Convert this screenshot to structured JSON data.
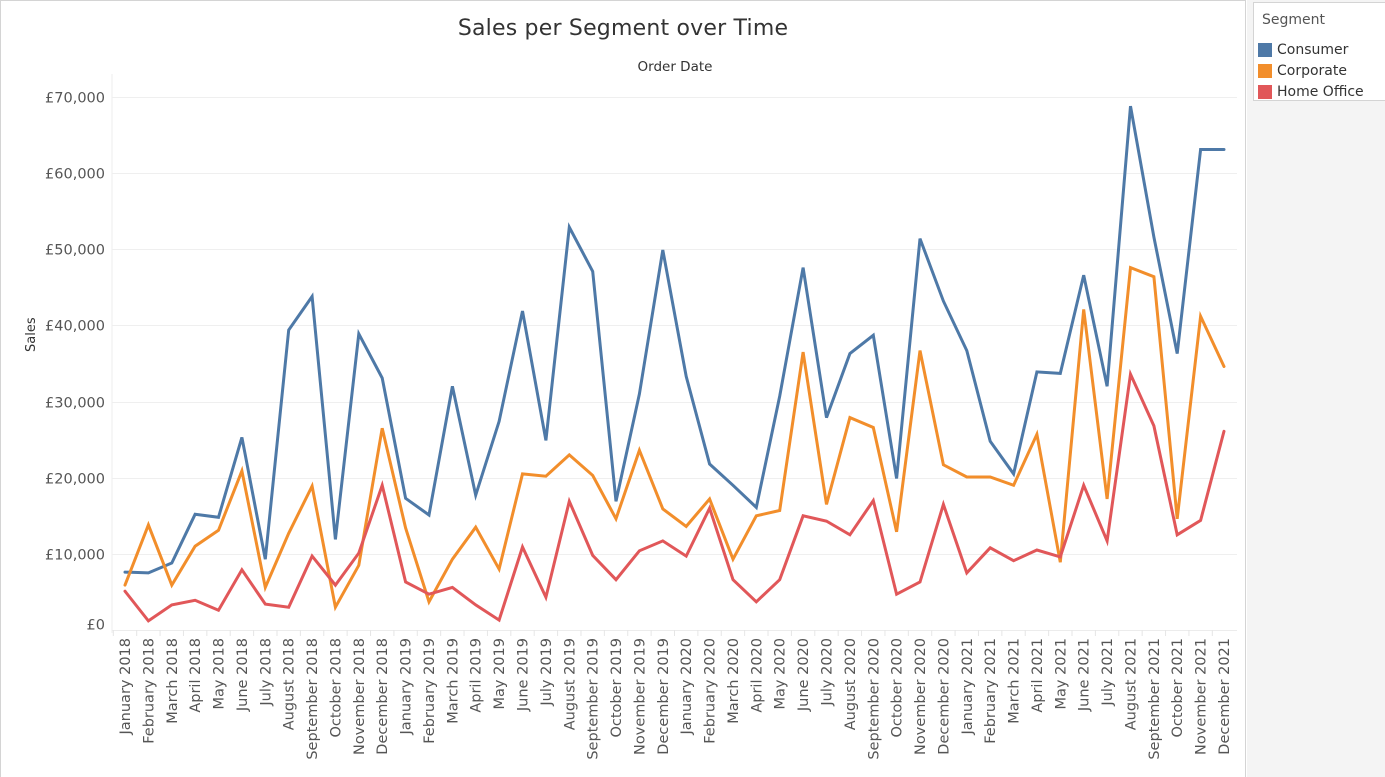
{
  "chart_data": {
    "type": "line",
    "title": "Sales per Segment over Time",
    "xlabel": "Order Date",
    "ylabel": "Sales",
    "ylim": [
      0,
      70000
    ],
    "yticks": [
      0,
      10000,
      20000,
      30000,
      40000,
      50000,
      60000,
      70000
    ],
    "ytick_labels": [
      "£0",
      "£10,000",
      "£20,000",
      "£30,000",
      "£40,000",
      "£50,000",
      "£60,000",
      "£70,000"
    ],
    "grid": true,
    "legend_title": "Segment",
    "legend_position": "top-right",
    "categories": [
      "January 2018",
      "February 2018",
      "March 2018",
      "April 2018",
      "May 2018",
      "June 2018",
      "July 2018",
      "August 2018",
      "September 2018",
      "October 2018",
      "November 2018",
      "December 2018",
      "January 2019",
      "February 2019",
      "March 2019",
      "April 2019",
      "May 2019",
      "June 2019",
      "July 2019",
      "August 2019",
      "September 2019",
      "October 2019",
      "November 2019",
      "December 2019",
      "January 2020",
      "February 2020",
      "March 2020",
      "April 2020",
      "May 2020",
      "June 2020",
      "July 2020",
      "August 2020",
      "September 2020",
      "October 2020",
      "November 2020",
      "December 2020",
      "January 2021",
      "February 2021",
      "March 2021",
      "April 2021",
      "May 2021",
      "June 2021",
      "July 2021",
      "August 2021",
      "September 2021",
      "October 2021",
      "November 2021",
      "December 2021"
    ],
    "series": [
      {
        "name": "Consumer",
        "color": "#4e79a7",
        "values": [
          7600,
          7500,
          8800,
          15200,
          14800,
          25300,
          9300,
          39400,
          43800,
          11900,
          38900,
          33100,
          17300,
          15100,
          32000,
          17700,
          27400,
          41900,
          24900,
          52900,
          47100,
          16900,
          31000,
          49900,
          33300,
          21800,
          19000,
          16100,
          30700,
          47600,
          27900,
          36300,
          38700,
          19900,
          51400,
          43200,
          36700,
          24800,
          20500,
          33900,
          33700,
          46600,
          32000,
          68800,
          51600,
          36300,
          63100,
          63100
        ]
      },
      {
        "name": "Corporate",
        "color": "#f28e2b",
        "values": [
          5900,
          13800,
          5900,
          11000,
          13100,
          20900,
          5600,
          12700,
          18900,
          3000,
          8500,
          26500,
          13400,
          3700,
          9300,
          13500,
          8000,
          20500,
          20200,
          23000,
          20300,
          14600,
          23600,
          15900,
          13600,
          17200,
          9300,
          15000,
          15700,
          36500,
          16500,
          27900,
          26600,
          12900,
          36700,
          21700,
          20100,
          20100,
          19000,
          25700,
          8900,
          42100,
          17200,
          47600,
          46400,
          14600,
          41200,
          34600
        ]
      },
      {
        "name": "Home Office",
        "color": "#e15759",
        "values": [
          5100,
          1200,
          3300,
          3900,
          2600,
          7900,
          3400,
          3000,
          9700,
          5900,
          10100,
          19000,
          6300,
          4700,
          5600,
          3300,
          1300,
          10900,
          4300,
          16900,
          9800,
          6600,
          10400,
          11700,
          9700,
          16000,
          6600,
          3700,
          6600,
          15000,
          14300,
          12500,
          17000,
          4700,
          6300,
          16500,
          7500,
          10800,
          9100,
          10500,
          9600,
          19000,
          11700,
          33600,
          26800,
          12500,
          14400,
          26100
        ]
      }
    ]
  }
}
